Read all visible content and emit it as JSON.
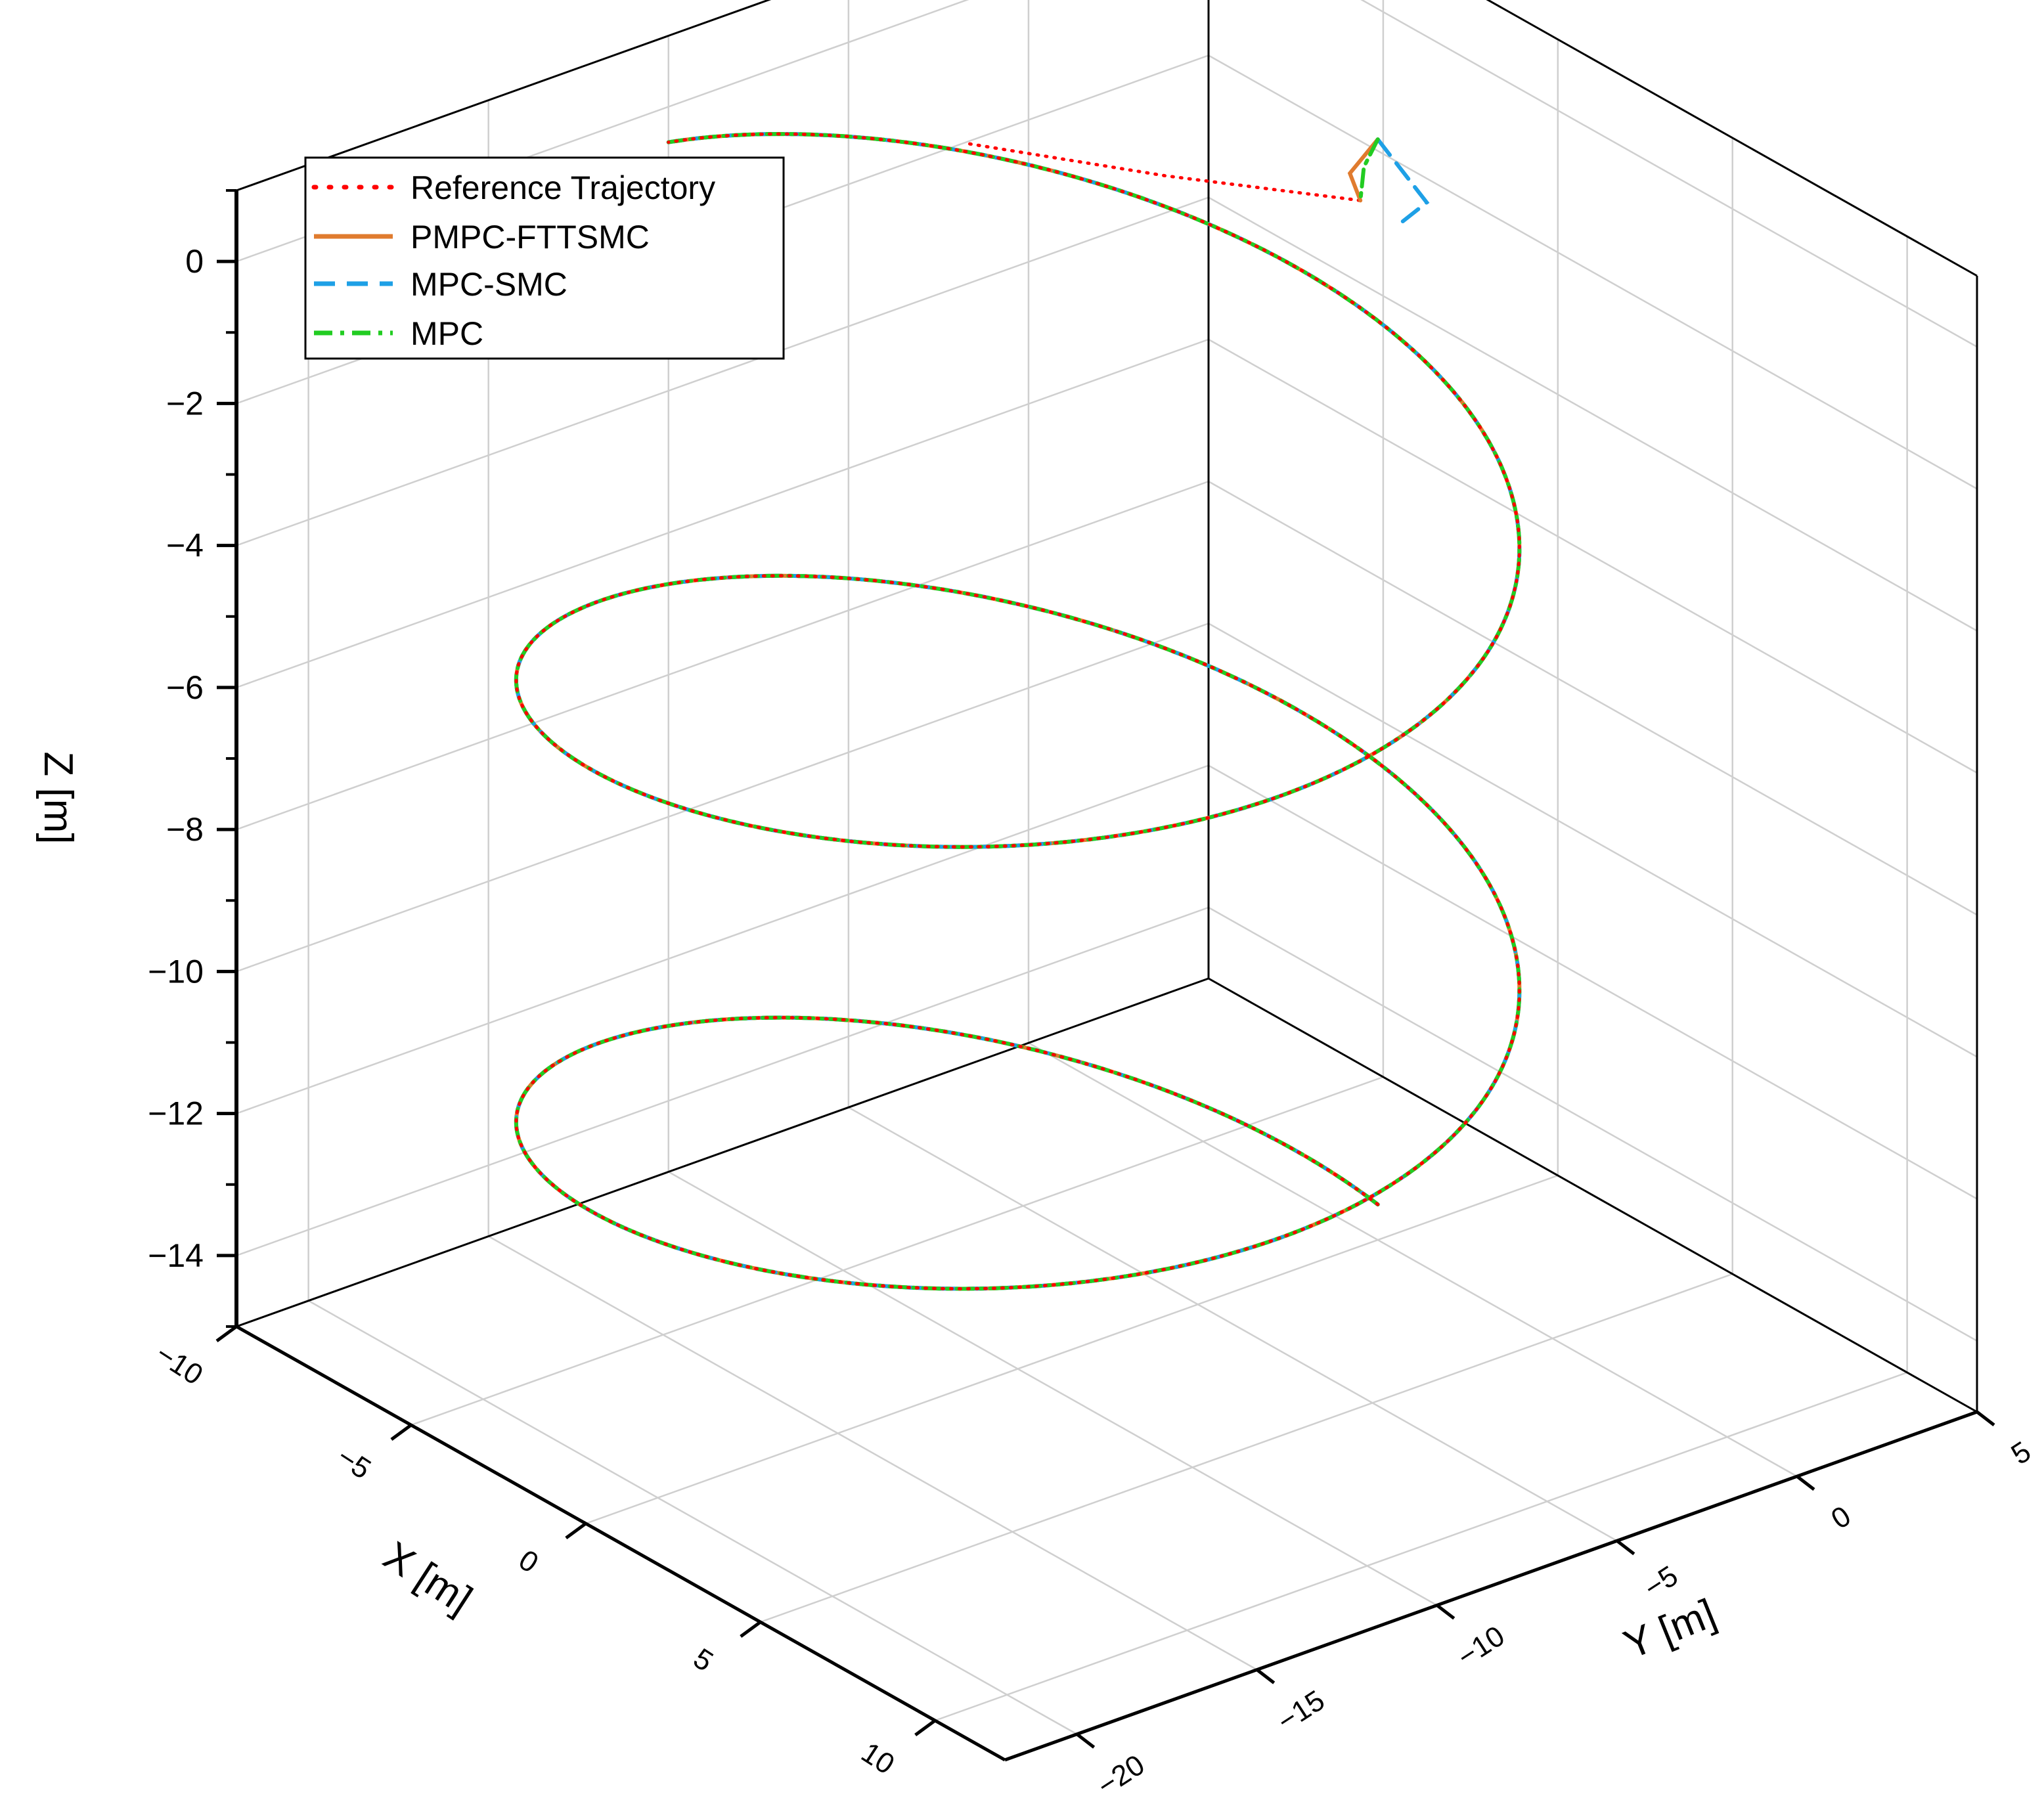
{
  "chart_data": {
    "type": "line3d",
    "title": "",
    "xlabel": "X [m]",
    "ylabel": "Y [m]",
    "zlabel": "Z [m]",
    "xlim": [
      -10,
      12
    ],
    "ylim": [
      -22,
      5
    ],
    "zlim": [
      -15,
      1
    ],
    "x_ticks": [
      -10,
      -5,
      0,
      5,
      10
    ],
    "y_ticks": [
      -20,
      -15,
      -10,
      -5,
      0,
      5
    ],
    "z_ticks": [
      0,
      -2,
      -4,
      -6,
      -8,
      -10,
      -12,
      -14
    ],
    "x_tick_labels": [
      "−10",
      "−5",
      "0",
      "5",
      "10"
    ],
    "y_tick_labels": [
      "−20",
      "−15",
      "−10",
      "−5",
      "0",
      "5"
    ],
    "z_tick_labels": [
      "0",
      "−2",
      "−4",
      "−6",
      "−8",
      "−10",
      "−12",
      "−14"
    ],
    "grid": true,
    "legend_position": "top-left",
    "helix": {
      "center_x": 0,
      "center_y": -10,
      "radius": 10,
      "z_start": -14.5,
      "z_end": -0.5,
      "turns": 2.25,
      "start_angle_deg": 90
    },
    "series": [
      {
        "name": "Reference Trajectory",
        "color": "#ff0000",
        "style": "dotted"
      },
      {
        "name": "PMPC-FTTSMC",
        "color": "#e07b2e",
        "style": "solid"
      },
      {
        "name": "MPC-SMC",
        "color": "#1ea0e6",
        "style": "dashed"
      },
      {
        "name": "MPC",
        "color": "#22cc22",
        "style": "dashdot"
      }
    ],
    "initial_segments": {
      "reference": {
        "x": [
          -5.5,
          -3,
          -0.5
        ],
        "y": [
          -6,
          -3,
          0
        ],
        "z": [
          0,
          -0.3,
          -0.5
        ]
      },
      "PMPC-FTTSMC": {
        "x": [
          0,
          -0.8,
          -0.5
        ],
        "y": [
          0,
          0,
          0
        ],
        "z": [
          0.5,
          -0.2,
          -0.5
        ]
      },
      "MPC-SMC": {
        "x": [
          0,
          1.4,
          0.5
        ],
        "y": [
          0,
          0,
          0
        ],
        "z": [
          0.5,
          0,
          -0.6
        ]
      },
      "MPC": {
        "x": [
          0,
          -0.4,
          -0.5
        ],
        "y": [
          0,
          0,
          0
        ],
        "z": [
          0.5,
          0,
          -0.5
        ]
      }
    }
  }
}
